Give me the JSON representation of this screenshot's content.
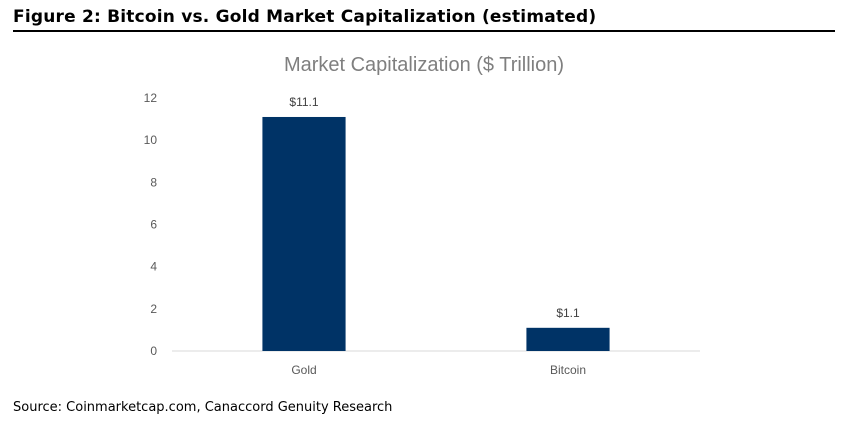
{
  "figure_title": "Figure 2: Bitcoin vs. Gold Market Capitalization (estimated)",
  "source": "Source: Coinmarketcap.com, Canaccord Genuity Research",
  "colors": {
    "bar": "#003366",
    "axis": "#d9d9d9"
  },
  "chart_data": {
    "type": "bar",
    "title": "Market Capitalization ($ Trillion)",
    "xlabel": "",
    "ylabel": "",
    "categories": [
      "Gold",
      "Bitcoin"
    ],
    "values": [
      11.1,
      1.1
    ],
    "data_labels": [
      "$11.1",
      "$1.1"
    ],
    "ylim": [
      0,
      12
    ],
    "yticks": [
      0,
      2,
      4,
      6,
      8,
      10,
      12
    ],
    "grid": false,
    "legend": "none"
  }
}
